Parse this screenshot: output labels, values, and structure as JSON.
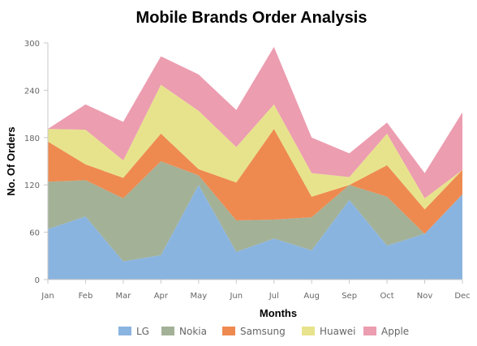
{
  "chart_data": {
    "type": "area",
    "stacked": true,
    "title": "Mobile Brands Order Analysis",
    "xlabel": "Months",
    "ylabel": "No. Of Orders",
    "categories": [
      "Jan",
      "Feb",
      "Mar",
      "Apr",
      "May",
      "Jun",
      "Jul",
      "Aug",
      "Sep",
      "Oct",
      "Nov",
      "Dec"
    ],
    "ylim": [
      0,
      300
    ],
    "yticks": [
      0,
      60,
      120,
      180,
      240,
      300
    ],
    "legend_position": "bottom",
    "grid": false,
    "series": [
      {
        "name": "LG",
        "color": "#8ab4e0",
        "values": [
          64,
          80,
          23,
          31,
          120,
          35,
          52,
          37,
          101,
          43,
          58,
          108
        ]
      },
      {
        "name": "Nokia",
        "color": "#a3b197",
        "values": [
          60,
          46,
          80,
          119,
          12,
          40,
          24,
          42,
          19,
          62,
          0,
          0
        ]
      },
      {
        "name": "Samsung",
        "color": "#ee8a50",
        "values": [
          51,
          20,
          26,
          35,
          8,
          48,
          115,
          26,
          0,
          40,
          31,
          31
        ]
      },
      {
        "name": "Huawei",
        "color": "#e7e38c",
        "values": [
          16,
          44,
          22,
          62,
          74,
          45,
          31,
          30,
          10,
          40,
          14,
          0
        ]
      },
      {
        "name": "Apple",
        "color": "#ec9db0",
        "values": [
          0,
          32,
          49,
          36,
          46,
          47,
          73,
          45,
          30,
          14,
          32,
          73
        ]
      }
    ]
  }
}
